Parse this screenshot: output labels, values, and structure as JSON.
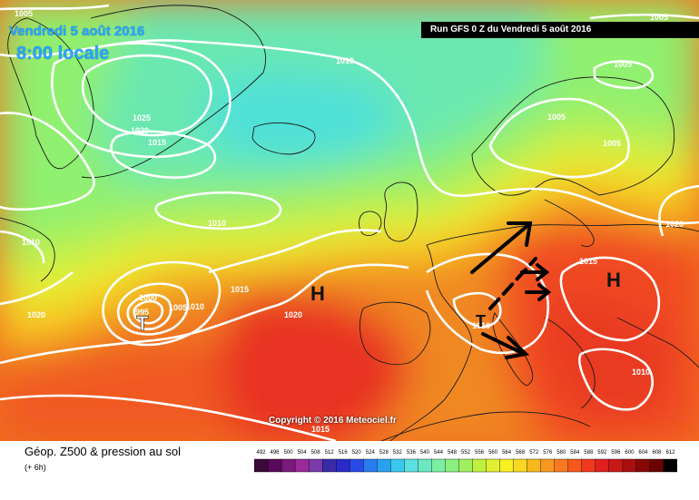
{
  "header": {
    "date": "Vendredi 5 août 2016",
    "time": "8:00 locale",
    "run": "Run GFS 0 Z du Vendredi 5 août 2016"
  },
  "copyright": "Copyright © 2016 Meteociel.fr",
  "legend": {
    "title": "Géop. Z500 & pression au sol",
    "subtitle": "(+ 6h)",
    "scale_values": [
      492,
      496,
      500,
      504,
      508,
      512,
      516,
      520,
      524,
      528,
      532,
      536,
      540,
      544,
      548,
      552,
      556,
      560,
      564,
      568,
      572,
      576,
      580,
      584,
      588,
      592,
      596,
      600,
      604,
      608,
      612
    ],
    "scale_colors": [
      "#3a0a3a",
      "#5a0a5a",
      "#7a1a7a",
      "#9a2a9a",
      "#7a3aa8",
      "#3a2aa8",
      "#2a2ac8",
      "#2a4ae8",
      "#2a7af0",
      "#2aa0f0",
      "#3ac8f0",
      "#5ae0e0",
      "#6ae8c0",
      "#7af0a0",
      "#8af080",
      "#a0f060",
      "#c0f040",
      "#e0f030",
      "#f8f020",
      "#f8d820",
      "#f8b820",
      "#f89820",
      "#f87820",
      "#f85820",
      "#f03a20",
      "#e02020",
      "#c81818",
      "#a81010",
      "#880808",
      "#680404",
      "#000000"
    ]
  },
  "map": {
    "pressure_labels": [
      {
        "text": "1005"
      },
      {
        "text": "1005"
      },
      {
        "text": "1010"
      },
      {
        "text": "1025"
      },
      {
        "text": "1020"
      },
      {
        "text": "1015"
      },
      {
        "text": "1005"
      },
      {
        "text": "1005"
      },
      {
        "text": "1005"
      },
      {
        "text": "1010"
      },
      {
        "text": "1010"
      },
      {
        "text": "1020"
      },
      {
        "text": "1015"
      },
      {
        "text": "1000"
      },
      {
        "text": "995"
      },
      {
        "text": "1005"
      },
      {
        "text": "1010"
      },
      {
        "text": "1020"
      },
      {
        "text": "1015"
      },
      {
        "text": "1020"
      },
      {
        "text": "1010"
      },
      {
        "text": "1010"
      },
      {
        "text": "1015"
      }
    ],
    "centers": [
      {
        "text": "H"
      },
      {
        "text": "H"
      },
      {
        "text": "T"
      },
      {
        "text": "T"
      }
    ]
  }
}
